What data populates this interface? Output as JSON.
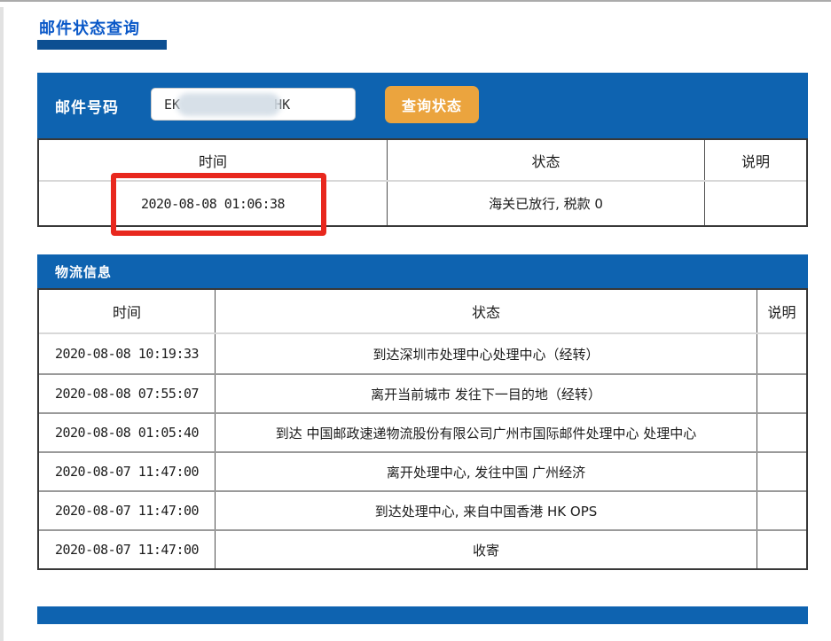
{
  "page": {
    "title": "邮件状态查询"
  },
  "search": {
    "label": "邮件号码",
    "input_prefix": "EK",
    "input_suffix": "HK",
    "button_label": "查询状态"
  },
  "status_table": {
    "headers": [
      "时间",
      "状态",
      "说明"
    ],
    "rows": [
      [
        "2020-08-08 01:06:38",
        "海关已放行, 税款 0",
        ""
      ]
    ]
  },
  "logistics": {
    "title": "物流信息",
    "headers": [
      "时间",
      "状态",
      "说明"
    ],
    "rows": [
      [
        "2020-08-08 10:19:33",
        "到达深圳市处理中心处理中心（经转）",
        ""
      ],
      [
        "2020-08-08 07:55:07",
        "离开当前城市 发往下一目的地（经转）",
        ""
      ],
      [
        "2020-08-08 01:05:40",
        "到达 中国邮政速递物流股份有限公司广州市国际邮件处理中心 处理中心",
        ""
      ],
      [
        "2020-08-07 11:47:00",
        "离开处理中心, 发往中国 广州经济",
        ""
      ],
      [
        "2020-08-07 11:47:00",
        "到达处理中心, 来自中国香港 HK OPS",
        ""
      ],
      [
        "2020-08-07 11:47:00",
        "收寄",
        ""
      ]
    ]
  },
  "colors": {
    "panel_blue": "#0e63b0",
    "title_blue": "#0a58c8",
    "underline_blue": "#0d4f92",
    "button_orange": "#eba43e",
    "annotation_red": "#e8281e"
  }
}
